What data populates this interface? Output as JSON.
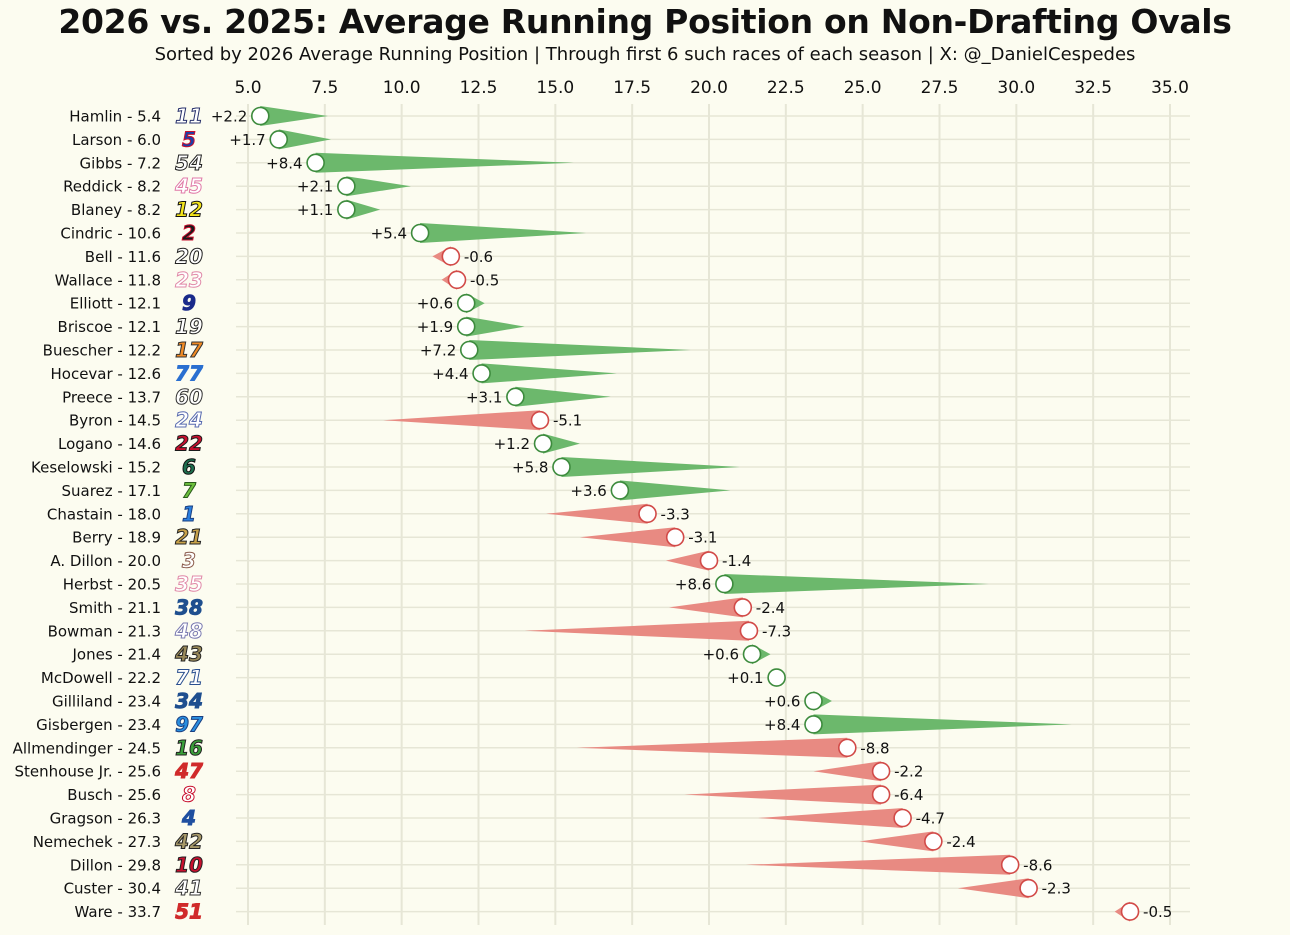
{
  "title": "2026 vs. 2025: Average Running Position on Non-Drafting Ovals",
  "subtitle": "Sorted by 2026 Average Running Position | Through first 6 such races of each season | X: @_DanielCespedes",
  "colors": {
    "background": "#fcfcf0",
    "gridline": "#e6e6d6",
    "improved_fill": "#6cb86c",
    "improved_stroke": "#3d8b3d",
    "declined_fill": "#e88a82",
    "declined_stroke": "#d24a48"
  },
  "chart_data": {
    "type": "scatter",
    "xlim": [
      3.5,
      35.5
    ],
    "x_ticks": [
      "5.0",
      "7.5",
      "10.0",
      "12.5",
      "15.0",
      "17.5",
      "20.0",
      "22.5",
      "25.0",
      "27.5",
      "30.0",
      "32.5",
      "35.0"
    ],
    "x_tick_values": [
      5,
      7.5,
      10,
      12.5,
      15,
      17.5,
      20,
      22.5,
      25,
      27.5,
      30,
      32.5,
      35
    ],
    "x_axis_position": "top",
    "grid": true,
    "rows": [
      {
        "label": "Hamlin -  5.4",
        "number": "11",
        "num_color": "#ffffff",
        "num_stroke": "#27306b",
        "avg_2026": 5.4,
        "diff": "+2.2",
        "diff_value": 2.2
      },
      {
        "label": "Larson -  6.0",
        "number": "5",
        "num_color": "#1a3fa8",
        "num_stroke": "#c8102e",
        "avg_2026": 6.0,
        "diff": "+1.7",
        "diff_value": 1.7
      },
      {
        "label": "Gibbs -  7.2",
        "number": "54",
        "num_color": "#ffffff",
        "num_stroke": "#222222",
        "avg_2026": 7.2,
        "diff": "+8.4",
        "diff_value": 8.4
      },
      {
        "label": "Reddick -  8.2",
        "number": "45",
        "num_color": "#ffffff",
        "num_stroke": "#e07aa8",
        "avg_2026": 8.2,
        "diff": "+2.1",
        "diff_value": 2.1
      },
      {
        "label": "Blaney -  8.2",
        "number": "12",
        "num_color": "#f4e51a",
        "num_stroke": "#111111",
        "avg_2026": 8.2,
        "diff": "+1.1",
        "diff_value": 1.1
      },
      {
        "label": "Cindric - 10.6",
        "number": "2",
        "num_color": "#1a1a1a",
        "num_stroke": "#c8102e",
        "avg_2026": 10.6,
        "diff": "+5.4",
        "diff_value": 5.4
      },
      {
        "label": "Bell - 11.6",
        "number": "20",
        "num_color": "#ffffff",
        "num_stroke": "#222222",
        "avg_2026": 11.6,
        "diff": "-0.6",
        "diff_value": -0.6
      },
      {
        "label": "Wallace - 11.8",
        "number": "23",
        "num_color": "#ffffff",
        "num_stroke": "#e08aa8",
        "avg_2026": 11.8,
        "diff": "-0.5",
        "diff_value": -0.5
      },
      {
        "label": "Elliott - 12.1",
        "number": "9",
        "num_color": "#1a2a8a",
        "num_stroke": "#1a2a8a",
        "avg_2026": 12.1,
        "diff": "+0.6",
        "diff_value": 0.6
      },
      {
        "label": "Briscoe - 12.1",
        "number": "19",
        "num_color": "#ffffff",
        "num_stroke": "#222222",
        "avg_2026": 12.1,
        "diff": "+1.9",
        "diff_value": 1.9
      },
      {
        "label": "Buescher - 12.2",
        "number": "17",
        "num_color": "#f08a24",
        "num_stroke": "#333333",
        "avg_2026": 12.2,
        "diff": "+7.2",
        "diff_value": 7.2
      },
      {
        "label": "Hocevar - 12.6",
        "number": "77",
        "num_color": "#2a6fd0",
        "num_stroke": "#2a6fd0",
        "avg_2026": 12.6,
        "diff": "+4.4",
        "diff_value": 4.4
      },
      {
        "label": "Preece - 13.7",
        "number": "60",
        "num_color": "#ffffff",
        "num_stroke": "#333333",
        "avg_2026": 13.7,
        "diff": "+3.1",
        "diff_value": 3.1
      },
      {
        "label": "Byron - 14.5",
        "number": "24",
        "num_color": "#ffffff",
        "num_stroke": "#5a6cb0",
        "avg_2026": 14.5,
        "diff": "-5.1",
        "diff_value": -5.1
      },
      {
        "label": "Logano - 14.6",
        "number": "22",
        "num_color": "#c8102e",
        "num_stroke": "#1a1a1a",
        "avg_2026": 14.6,
        "diff": "+1.2",
        "diff_value": 1.2
      },
      {
        "label": "Keselowski - 15.2",
        "number": "6",
        "num_color": "#1e6f4e",
        "num_stroke": "#111111",
        "avg_2026": 15.2,
        "diff": "+5.8",
        "diff_value": 5.8
      },
      {
        "label": "Suarez - 17.1",
        "number": "7",
        "num_color": "#6cbf3c",
        "num_stroke": "#2a5a1a",
        "avg_2026": 17.1,
        "diff": "+3.6",
        "diff_value": 3.6
      },
      {
        "label": "Chastain - 18.0",
        "number": "1",
        "num_color": "#2a7fe0",
        "num_stroke": "#1a3f80",
        "avg_2026": 18.0,
        "diff": "-3.3",
        "diff_value": -3.3
      },
      {
        "label": "Berry - 18.9",
        "number": "21",
        "num_color": "#c8a24a",
        "num_stroke": "#222222",
        "avg_2026": 18.9,
        "diff": "-3.1",
        "diff_value": -3.1
      },
      {
        "label": "A. Dillon - 20.0",
        "number": "3",
        "num_color": "#ffffff",
        "num_stroke": "#8a5a4a",
        "avg_2026": 20.0,
        "diff": "-1.4",
        "diff_value": -1.4
      },
      {
        "label": "Herbst - 20.5",
        "number": "35",
        "num_color": "#ffffff",
        "num_stroke": "#e08aa8",
        "avg_2026": 20.5,
        "diff": "+8.6",
        "diff_value": 8.6
      },
      {
        "label": "Smith - 21.1",
        "number": "38",
        "num_color": "#1f4f8f",
        "num_stroke": "#1f4f8f",
        "avg_2026": 21.1,
        "diff": "-2.4",
        "diff_value": -2.4
      },
      {
        "label": "Bowman - 21.3",
        "number": "48",
        "num_color": "#ffffff",
        "num_stroke": "#7a7ab0",
        "avg_2026": 21.3,
        "diff": "-7.3",
        "diff_value": -7.3
      },
      {
        "label": "Jones - 21.4",
        "number": "43",
        "num_color": "#9a8a5a",
        "num_stroke": "#222222",
        "avg_2026": 21.4,
        "diff": "+0.6",
        "diff_value": 0.6
      },
      {
        "label": "McDowell - 22.2",
        "number": "71",
        "num_color": "#ffffff",
        "num_stroke": "#2a4f8f",
        "avg_2026": 22.2,
        "diff": "+0.1",
        "diff_value": 0.1
      },
      {
        "label": "Gilliland - 23.4",
        "number": "34",
        "num_color": "#1f4f8f",
        "num_stroke": "#1f4f8f",
        "avg_2026": 23.4,
        "diff": "+0.6",
        "diff_value": 0.6
      },
      {
        "label": "Gisbergen - 23.4",
        "number": "97",
        "num_color": "#2a8fe0",
        "num_stroke": "#1a3f80",
        "avg_2026": 23.4,
        "diff": "+8.4",
        "diff_value": 8.4
      },
      {
        "label": "Allmendinger - 24.5",
        "number": "16",
        "num_color": "#3aa03a",
        "num_stroke": "#222222",
        "avg_2026": 24.5,
        "diff": "-8.8",
        "diff_value": -8.8
      },
      {
        "label": "Stenhouse Jr. - 25.6",
        "number": "47",
        "num_color": "#d02a2a",
        "num_stroke": "#d02a2a",
        "avg_2026": 25.6,
        "diff": "-2.2",
        "diff_value": -2.2
      },
      {
        "label": "Busch - 25.6",
        "number": "8",
        "num_color": "#ffffff",
        "num_stroke": "#c8102e",
        "avg_2026": 25.6,
        "diff": "-6.4",
        "diff_value": -6.4
      },
      {
        "label": "Gragson - 26.3",
        "number": "4",
        "num_color": "#1f4fa0",
        "num_stroke": "#1f4fa0",
        "avg_2026": 26.3,
        "diff": "-4.7",
        "diff_value": -4.7
      },
      {
        "label": "Nemechek - 27.3",
        "number": "42",
        "num_color": "#a89a6a",
        "num_stroke": "#222222",
        "avg_2026": 27.3,
        "diff": "-2.4",
        "diff_value": -2.4
      },
      {
        "label": "Dillon - 29.8",
        "number": "10",
        "num_color": "#c8102e",
        "num_stroke": "#222222",
        "avg_2026": 29.8,
        "diff": "-8.6",
        "diff_value": -8.6
      },
      {
        "label": "Custer - 30.4",
        "number": "41",
        "num_color": "#ffffff",
        "num_stroke": "#333333",
        "avg_2026": 30.4,
        "diff": "-2.3",
        "diff_value": -2.3
      },
      {
        "label": "Ware - 33.7",
        "number": "51",
        "num_color": "#d02a2a",
        "num_stroke": "#d02a2a",
        "avg_2026": 33.7,
        "diff": "-0.5",
        "diff_value": -0.5
      }
    ]
  }
}
